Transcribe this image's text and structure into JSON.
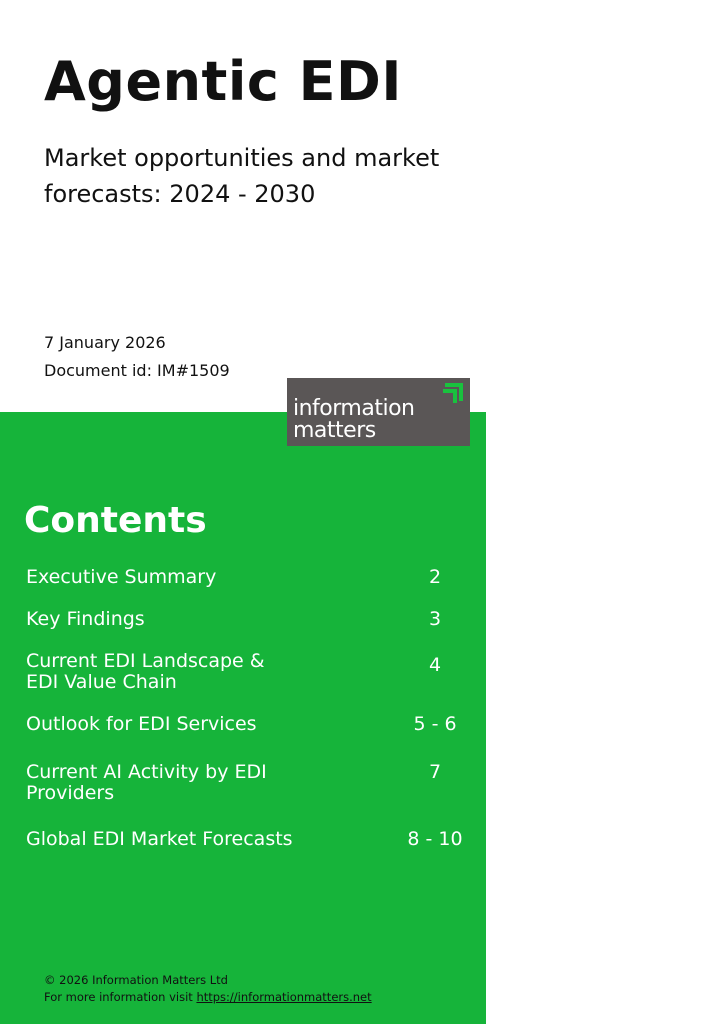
{
  "cover": {
    "title": "Agentic EDI",
    "subtitle": "Market opportunities and market forecasts: 2024 - 2030",
    "date": "7 January 2026",
    "document_id": "Document id: IM#1509"
  },
  "logo": {
    "line1": "information",
    "line2": "matters"
  },
  "contents": {
    "heading": "Contents",
    "items": [
      {
        "label": "Executive Summary",
        "page": "2"
      },
      {
        "label": "Key Findings",
        "page": "3"
      },
      {
        "label": "Current EDI Landscape & EDI Value Chain",
        "page": "4"
      },
      {
        "label": "Outlook for EDI Services",
        "page": "5 - 6"
      },
      {
        "label": "Current AI Activity by EDI Providers",
        "page": "7"
      },
      {
        "label": "Global EDI Market Forecasts",
        "page": "8 - 10"
      }
    ]
  },
  "footer": {
    "copyright": "© 2026 Information Matters Ltd",
    "more_info": "For more information visit",
    "link": "https://informationmatters.net"
  },
  "colors": {
    "green": "#16b43a",
    "logo_bg": "#5a5656"
  }
}
